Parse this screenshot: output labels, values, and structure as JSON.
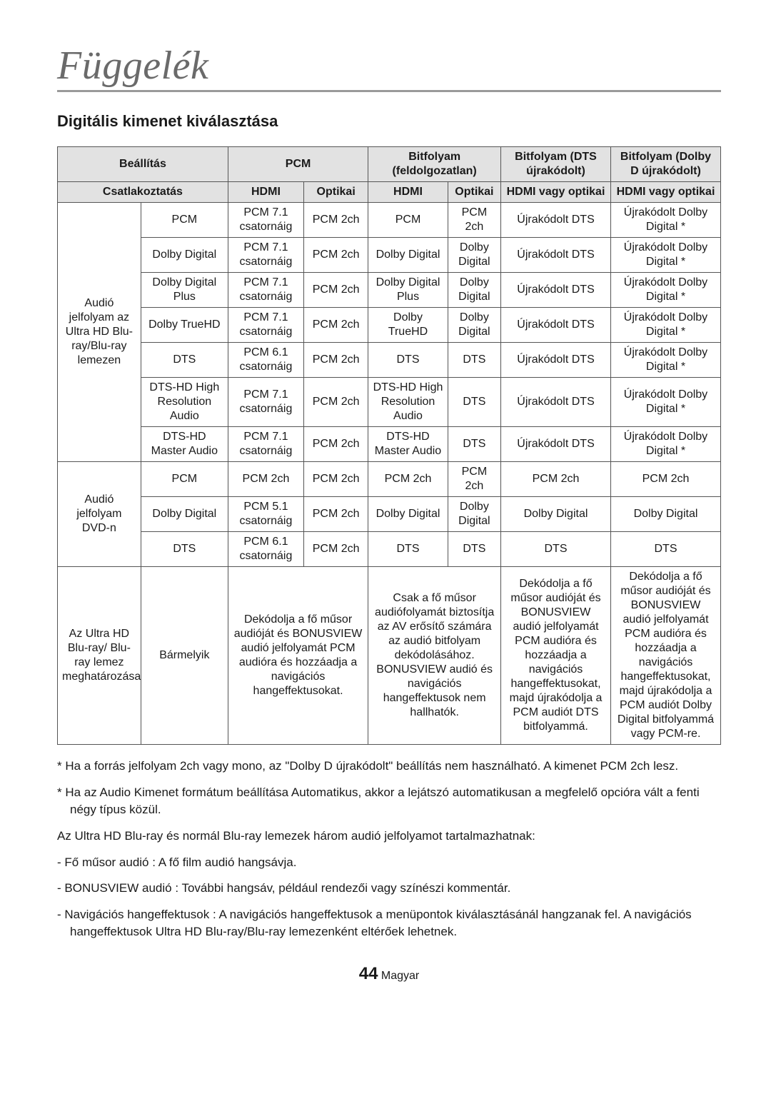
{
  "page": {
    "title": "Függelék",
    "section_title": "Digitális kimenet kiválasztása",
    "footer_number": "44",
    "footer_lang": "Magyar"
  },
  "table": {
    "header": {
      "beallitas": "Beállítás",
      "csatlakoztatas": "Csatlakoztatás",
      "pcm": "PCM",
      "bitfolyam": "Bitfolyam (feldolgozatlan)",
      "bitfolyam_dts": "Bitfolyam (DTS újrakódolt)",
      "bitfolyam_dolby": "Bitfolyam (Dolby D újrakódolt)",
      "hdmi": "HDMI",
      "optikai": "Optikai",
      "hdmi_opt": "HDMI vagy optikai"
    },
    "row_groups": {
      "uhd_br": "Audió jelfolyam az Ultra HD Blu-ray/Blu-ray lemezen",
      "dvd": "Audió jelfolyam DVD-n",
      "spec": "Az Ultra HD Blu-ray/ Blu-ray lemez meghatározása",
      "spec_sub": "Bármelyik"
    },
    "rows_uhd": [
      {
        "label": "PCM",
        "c1": "PCM 7.1 csatornáig",
        "c2": "PCM 2ch",
        "c3": "PCM",
        "c4": "PCM 2ch",
        "c5": "Újrakódolt DTS",
        "c6": "Újrakódolt Dolby Digital *"
      },
      {
        "label": "Dolby Digital",
        "c1": "PCM 7.1 csatornáig",
        "c2": "PCM 2ch",
        "c3": "Dolby Digital",
        "c4": "Dolby Digital",
        "c5": "Újrakódolt DTS",
        "c6": "Újrakódolt Dolby Digital *"
      },
      {
        "label": "Dolby Digital Plus",
        "c1": "PCM 7.1 csatornáig",
        "c2": "PCM 2ch",
        "c3": "Dolby Digital Plus",
        "c4": "Dolby Digital",
        "c5": "Újrakódolt DTS",
        "c6": "Újrakódolt Dolby Digital *"
      },
      {
        "label": "Dolby TrueHD",
        "c1": "PCM 7.1 csatornáig",
        "c2": "PCM 2ch",
        "c3": "Dolby TrueHD",
        "c4": "Dolby Digital",
        "c5": "Újrakódolt DTS",
        "c6": "Újrakódolt Dolby Digital *"
      },
      {
        "label": "DTS",
        "c1": "PCM 6.1 csatornáig",
        "c2": "PCM 2ch",
        "c3": "DTS",
        "c4": "DTS",
        "c5": "Újrakódolt DTS",
        "c6": "Újrakódolt Dolby Digital *"
      },
      {
        "label": "DTS-HD High Resolution Audio",
        "c1": "PCM 7.1 csatornáig",
        "c2": "PCM 2ch",
        "c3": "DTS-HD High Resolution Audio",
        "c4": "DTS",
        "c5": "Újrakódolt DTS",
        "c6": "Újrakódolt Dolby Digital *"
      },
      {
        "label": "DTS-HD Master Audio",
        "c1": "PCM 7.1 csatornáig",
        "c2": "PCM 2ch",
        "c3": "DTS-HD Master Audio",
        "c4": "DTS",
        "c5": "Újrakódolt DTS",
        "c6": "Újrakódolt Dolby Digital *"
      }
    ],
    "rows_dvd": [
      {
        "label": "PCM",
        "c1": "PCM 2ch",
        "c2": "PCM 2ch",
        "c3": "PCM 2ch",
        "c4": "PCM 2ch",
        "c5": "PCM 2ch",
        "c6": "PCM 2ch"
      },
      {
        "label": "Dolby Digital",
        "c1": "PCM 5.1 csatornáig",
        "c2": "PCM 2ch",
        "c3": "Dolby Digital",
        "c4": "Dolby Digital",
        "c5": "Dolby Digital",
        "c6": "Dolby Digital"
      },
      {
        "label": "DTS",
        "c1": "PCM 6.1 csatornáig",
        "c2": "PCM 2ch",
        "c3": "DTS",
        "c4": "DTS",
        "c5": "DTS",
        "c6": "DTS"
      }
    ],
    "spec_row": {
      "pcm": "Dekódolja a fő műsor audióját és BONUSVIEW audió jelfolyamát PCM audióra és hozzáadja a navigációs hangeffektusokat.",
      "bit": "Csak a fő műsor audiófolyamát biztosítja az AV erősítő számára az audió bitfolyam dekódolásához. BONUSVIEW audió és navigációs hangeffektusok nem hallhatók.",
      "dts": "Dekódolja a fő műsor audióját és BONUSVIEW audió jelfolyamát PCM audióra és hozzáadja a navigációs hangeffektusokat, majd újrakódolja a PCM audiót DTS bitfolyammá.",
      "dolby": "Dekódolja a fő műsor audióját és BONUSVIEW audió jelfolyamát PCM audióra és hozzáadja a navigációs hangeffektusokat, majd újrakódolja a PCM audiót Dolby Digital bitfolyammá vagy PCM-re."
    }
  },
  "notes": {
    "n1": "Ha a forrás jelfolyam 2ch vagy mono, az \"Dolby D újrakódolt\" beállítás nem használható. A kimenet PCM 2ch lesz.",
    "n2": "Ha az Audio Kimenet formátum beállítása Automatikus, akkor a lejátszó automatikusan a megfelelő opcióra vált a fenti négy típus közül.",
    "n3": "Az Ultra HD Blu-ray és normál Blu-ray lemezek három audió jelfolyamot tartalmazhatnak:",
    "n4": "Fő műsor audió : A fő film audió hangsávja.",
    "n5": "BONUSVIEW audió : További hangsáv, például rendezői vagy színészi kommentár.",
    "n6": "Navigációs hangeffektusok : A navigációs hangeffektusok a menüpontok kiválasztásánál hangzanak fel. A navigációs hangeffektusok Ultra HD Blu-ray/Blu-ray lemezenként eltérőek lehetnek."
  }
}
